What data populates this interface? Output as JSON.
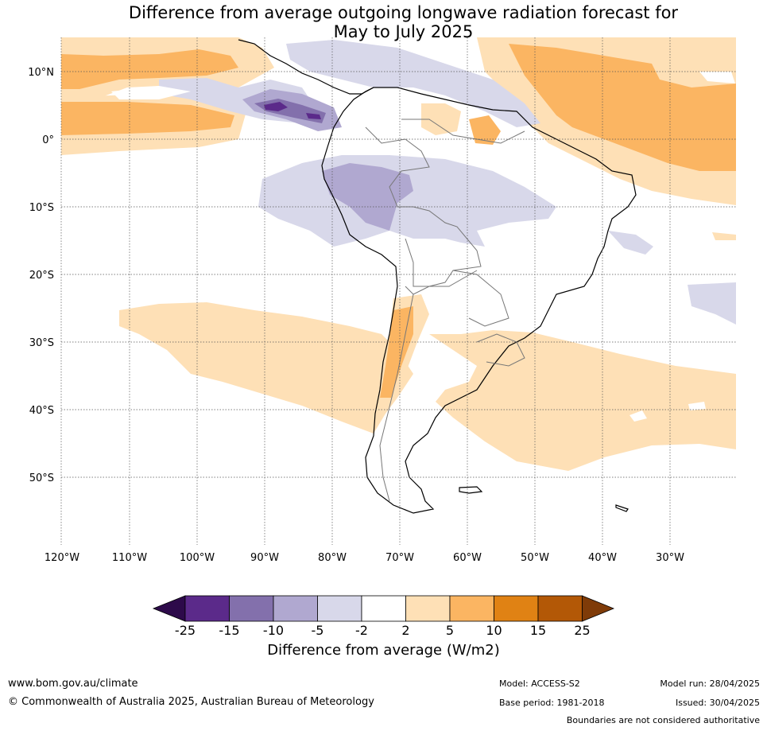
{
  "title": {
    "line1": "Difference from average outgoing longwave radiation forecast for",
    "line2": "May to July 2025"
  },
  "map": {
    "lat_labels": [
      "10°N",
      "0°",
      "10°S",
      "20°S",
      "30°S",
      "40°S",
      "50°S"
    ],
    "lon_labels": [
      "120°W",
      "110°W",
      "100°W",
      "90°W",
      "80°W",
      "70°W",
      "60°W",
      "50°W",
      "40°W",
      "30°W"
    ]
  },
  "colorbar": {
    "title": "Difference from average (W/m2)",
    "ticks": [
      "-25",
      "-15",
      "-10",
      "-5",
      "-2",
      "2",
      "5",
      "10",
      "15",
      "25"
    ],
    "colors": [
      "#2d0a4a",
      "#5b2a8a",
      "#8370ac",
      "#b0a8d0",
      "#d8d8ea",
      "#ffffff",
      "#fee0b6",
      "#fbb562",
      "#e08214",
      "#b35806",
      "#7f3b08"
    ]
  },
  "footer": {
    "url": "www.bom.gov.au/climate",
    "copyright": "© Commonwealth of Australia 2025, Australian Bureau of Meteorology",
    "model": "Model: ACCESS-S2",
    "base_period": "Base period: 1981-2018",
    "model_run": "Model run: 28/04/2025",
    "issued": "Issued: 30/04/2025",
    "disclaimer": "Boundaries are not considered authoritative"
  }
}
